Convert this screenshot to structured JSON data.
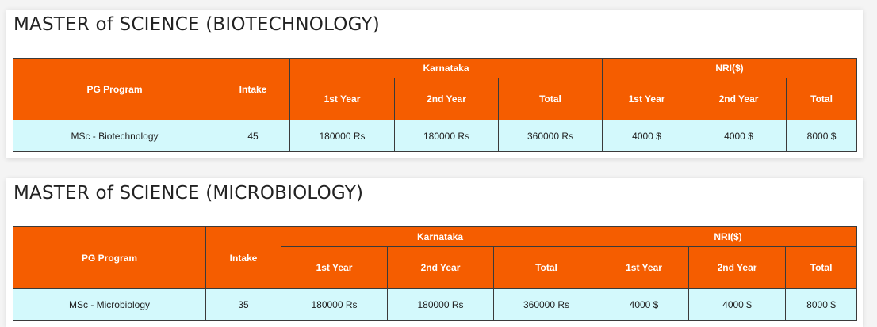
{
  "sections": [
    {
      "title": "MASTER of SCIENCE (BIOTECHNOLOGY)",
      "headers": {
        "program": "PG Program",
        "intake": "Intake",
        "group_state": "Karnataka",
        "group_nri": "NRI($)",
        "year1": "1st Year",
        "year2": "2nd Year",
        "total": "Total"
      },
      "row": {
        "program": "MSc - Biotechnology",
        "intake": "45",
        "state_year1": "180000 Rs",
        "state_year2": "180000 Rs",
        "state_total": "360000 Rs",
        "nri_year1": "4000 $",
        "nri_year2": "4000 $",
        "nri_total": "8000 $"
      }
    },
    {
      "title": "MASTER of SCIENCE (MICROBIOLOGY)",
      "headers": {
        "program": "PG Program",
        "intake": "Intake",
        "group_state": "Karnataka",
        "group_nri": "NRI($)",
        "year1": "1st Year",
        "year2": "2nd Year",
        "total": "Total"
      },
      "row": {
        "program": "MSc - Microbiology",
        "intake": "35",
        "state_year1": "180000 Rs",
        "state_year2": "180000 Rs",
        "state_total": "360000 Rs",
        "nri_year1": "4000 $",
        "nri_year2": "4000 $",
        "nri_total": "8000 $"
      }
    }
  ],
  "colors": {
    "header_bg": "#f55d00",
    "data_bg": "#d3f9fc",
    "border": "#3a3a3a"
  }
}
